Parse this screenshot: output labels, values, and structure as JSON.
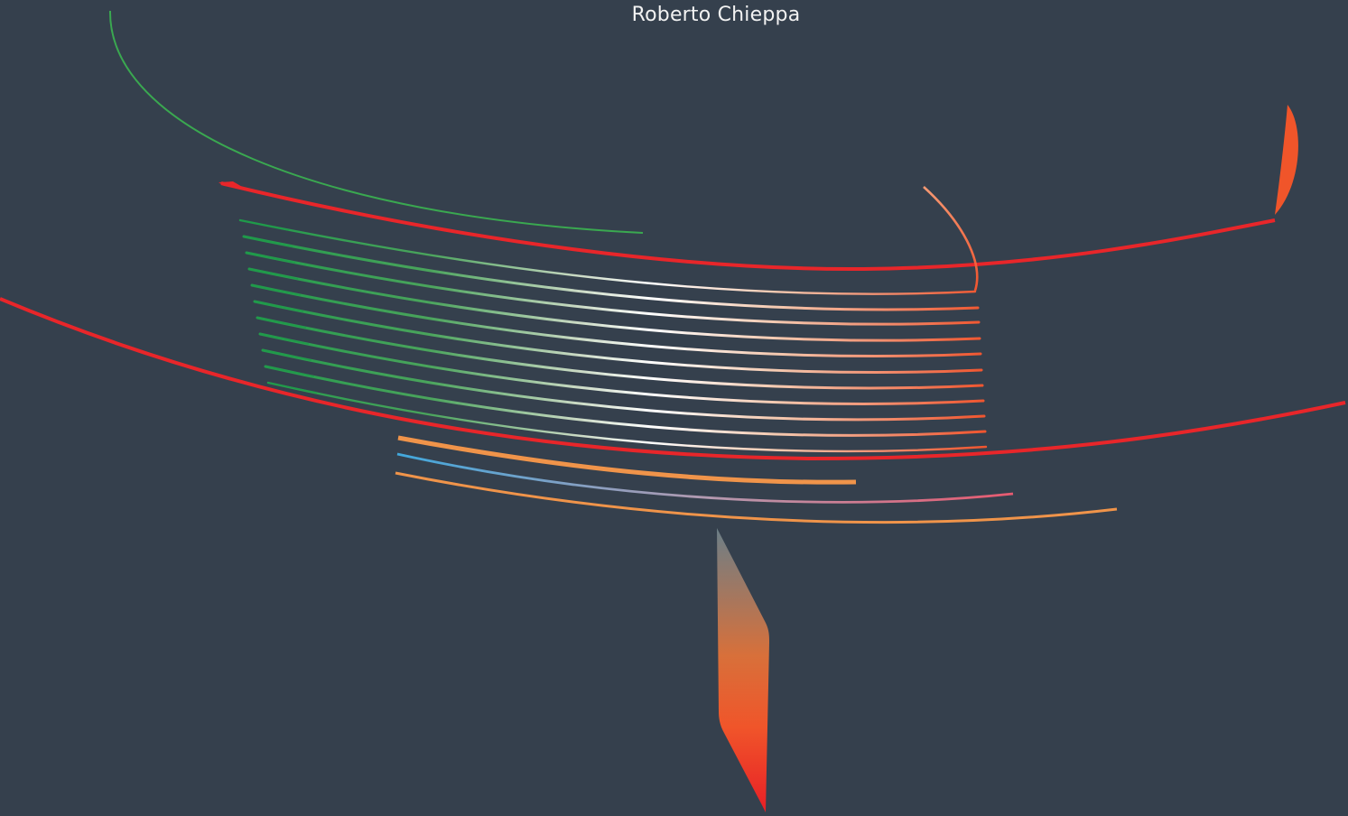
{
  "author": {
    "name": "Roberto Chieppa"
  },
  "colors": {
    "background": "#35404d",
    "text": "#f2f2f2",
    "red": "#e8262a",
    "orange": "#f0673a",
    "light_orange": "#f0944a",
    "green": "#2a9e4a",
    "white": "#ffffff",
    "blue": "#4aa3d8",
    "pink": "#e0607a",
    "slate": "#6d7c86"
  }
}
